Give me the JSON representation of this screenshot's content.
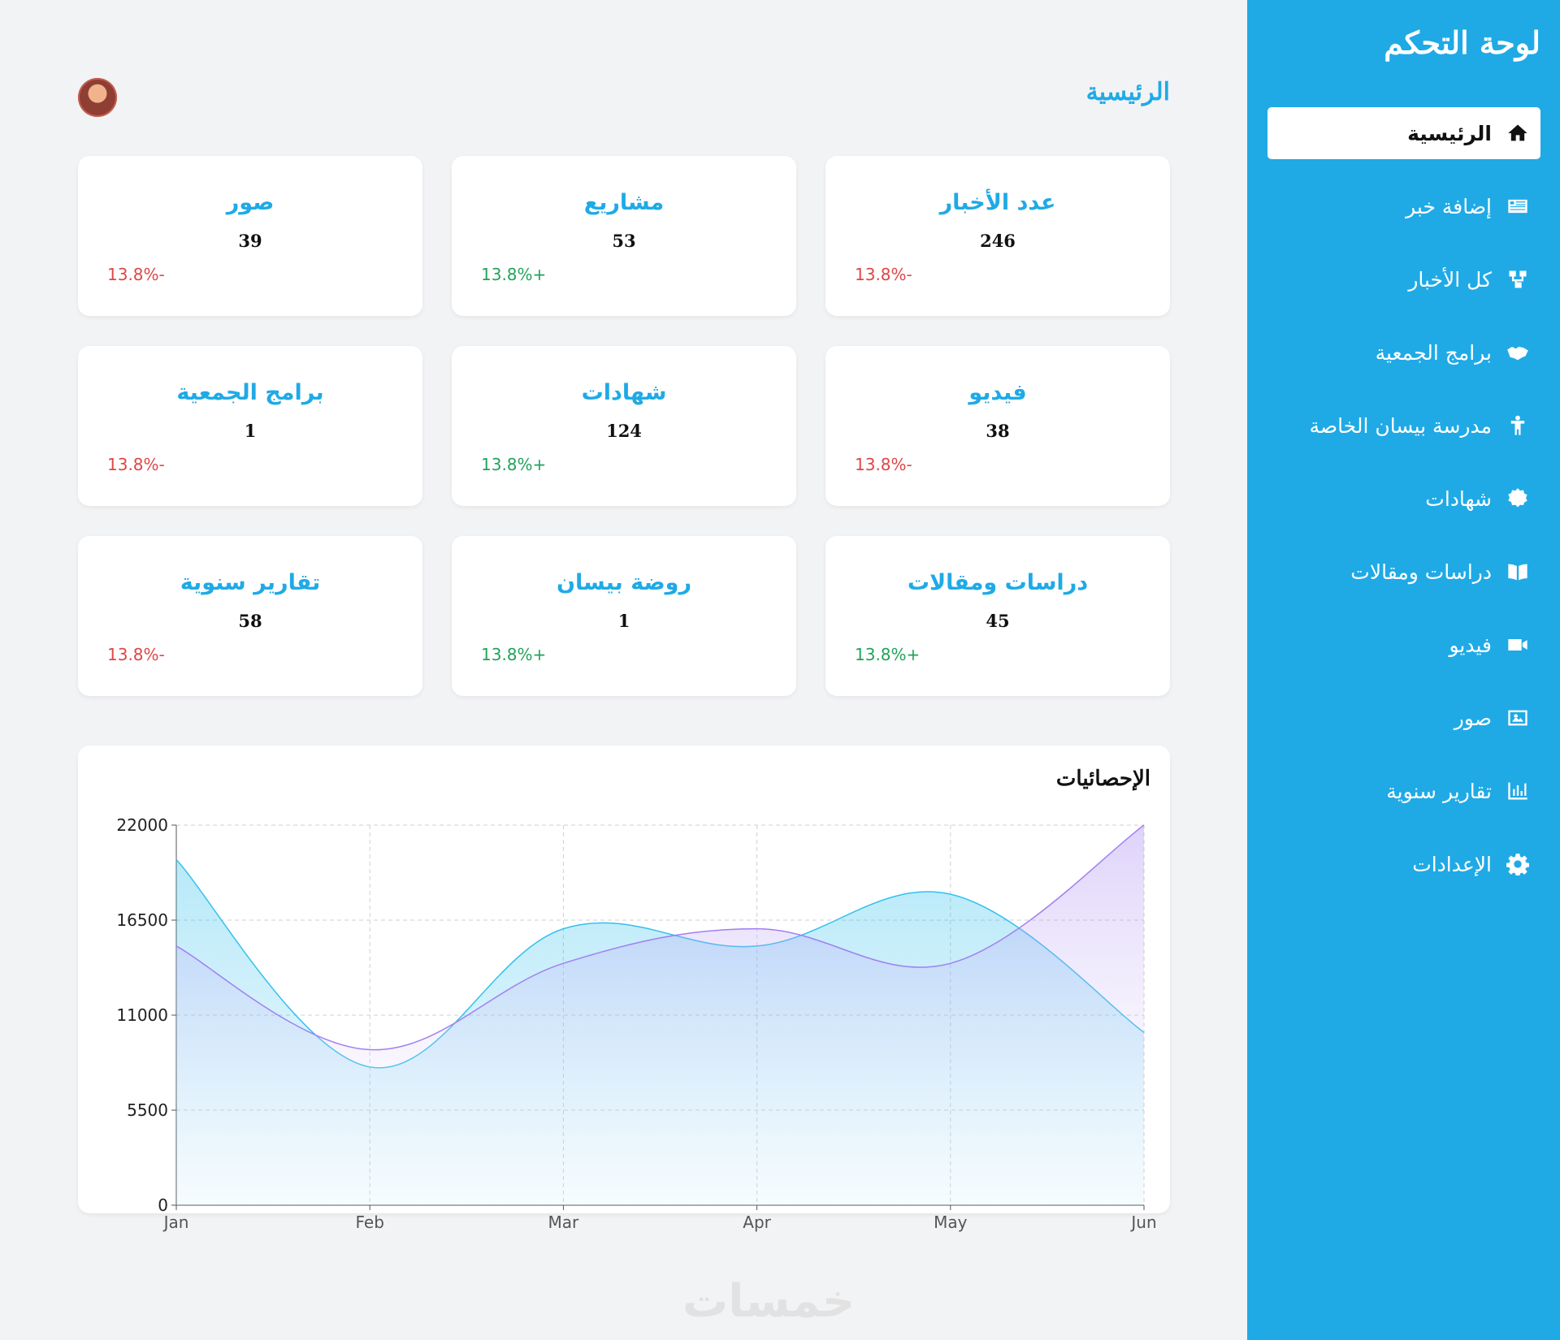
{
  "sidebar": {
    "title": "لوحة التحكم",
    "items": [
      {
        "label": "الرئيسية",
        "icon": "home-icon"
      },
      {
        "label": "إضافة خبر",
        "icon": "news-icon"
      },
      {
        "label": "كل الأخبار",
        "icon": "sitemap-icon"
      },
      {
        "label": "برامج الجمعية",
        "icon": "handshake-icon"
      },
      {
        "label": "مدرسة بيسان الخاصة",
        "icon": "child-icon"
      },
      {
        "label": "شهادات",
        "icon": "certificate-icon"
      },
      {
        "label": "دراسات ومقالات",
        "icon": "book-icon"
      },
      {
        "label": "فيديو",
        "icon": "video-icon"
      },
      {
        "label": "صور",
        "icon": "image-icon"
      },
      {
        "label": "تقارير سنوية",
        "icon": "bar-chart-icon"
      },
      {
        "label": "الإعدادات",
        "icon": "gear-icon"
      }
    ]
  },
  "header": {
    "title": "الرئيسية"
  },
  "cards": [
    {
      "title": "عدد الأخبار",
      "value": "246",
      "change": "13.8%-",
      "trend": "down"
    },
    {
      "title": "مشاريع",
      "value": "53",
      "change": "13.8%+",
      "trend": "up"
    },
    {
      "title": "صور",
      "value": "39",
      "change": "13.8%-",
      "trend": "down"
    },
    {
      "title": "فيديو",
      "value": "38",
      "change": "13.8%-",
      "trend": "down"
    },
    {
      "title": "شهادات",
      "value": "124",
      "change": "13.8%+",
      "trend": "up"
    },
    {
      "title": "برامج الجمعية",
      "value": "1",
      "change": "13.8%-",
      "trend": "down"
    },
    {
      "title": "دراسات ومقالات",
      "value": "45",
      "change": "13.8%+",
      "trend": "up"
    },
    {
      "title": "روضة بيسان",
      "value": "1",
      "change": "13.8%+",
      "trend": "up"
    },
    {
      "title": "تقارير سنوية",
      "value": "58",
      "change": "13.8%-",
      "trend": "down"
    }
  ],
  "chart_data": {
    "type": "area",
    "title": "الإحصائيات",
    "categories": [
      "Jan",
      "Feb",
      "Mar",
      "Apr",
      "May",
      "Jun"
    ],
    "y_ticks": [
      "0",
      "5500",
      "11000",
      "16500",
      "22000"
    ],
    "ylim": [
      0,
      22000
    ],
    "grid": true,
    "series": [
      {
        "values": [
          20000,
          8000,
          16000,
          15000,
          18000,
          10000
        ],
        "color": "#33c0ee"
      },
      {
        "values": [
          15000,
          9000,
          14000,
          16000,
          14000,
          22000
        ],
        "color": "#a17ff1"
      }
    ]
  },
  "watermark": "خمسات",
  "colors": {
    "accent": "#1faae6",
    "negative": "#e04646",
    "positive": "#22a35a"
  }
}
